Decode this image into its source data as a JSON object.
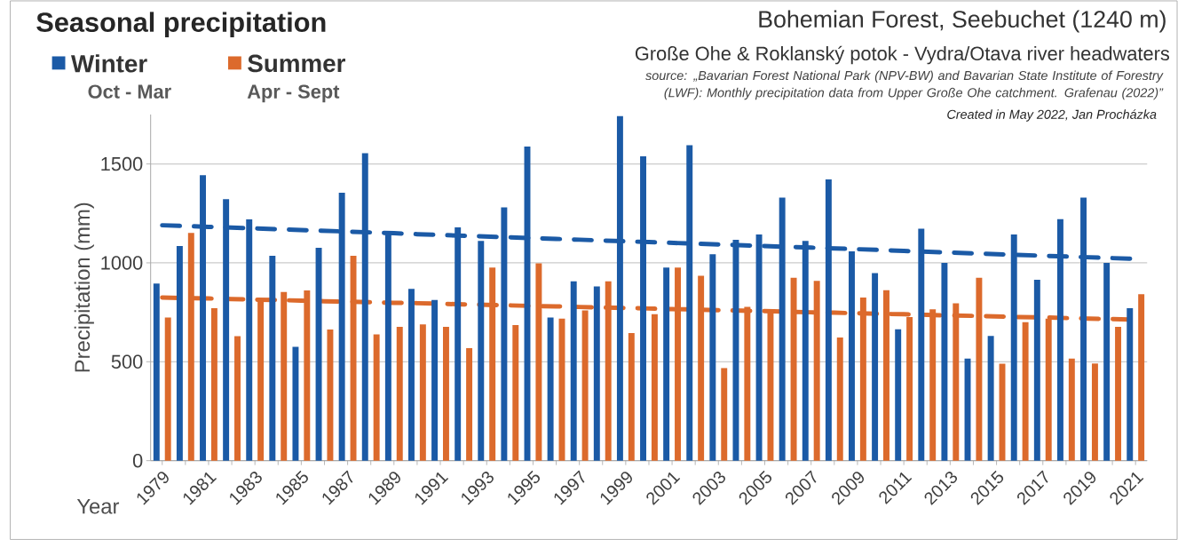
{
  "chart_data": {
    "type": "bar",
    "title": "Seasonal precipitation",
    "subtitle": "Bohemian Forest, Seebuchet (1240 m)",
    "xlabel": "Year",
    "ylabel": "Precipitation (mm)",
    "annotations": [
      "Große Ohe & Roklanský potok - Vydra/Otava river headwaters",
      "source: „Bavarian Forest National Park (NPV-BW) and Bavarian State Institute of Forestry (LWF): Monthly precipitation data from Upper Große Ohe catchment. Grafenau (2022)”",
      "Created in May 2022, Jan Procházka",
      "Oct - Mar",
      "Apr - Sept"
    ],
    "categories": [
      "1979",
      null,
      "1981",
      null,
      "1983",
      null,
      "1985",
      null,
      "1987",
      null,
      "1989",
      null,
      "1991",
      null,
      "1993",
      null,
      "1995",
      null,
      "1997",
      null,
      "1999",
      null,
      "2001",
      null,
      "2003",
      null,
      "2005",
      null,
      "2007",
      null,
      "2009",
      null,
      "2011",
      null,
      "2013",
      null,
      "2015",
      null,
      "2017",
      null,
      "2019",
      null,
      "2021"
    ],
    "series": [
      {
        "name": "Winter",
        "color": "#1b5aa6",
        "values": [
          895,
          1085,
          1443,
          1322,
          1220,
          1036,
          575,
          1076,
          1355,
          1554,
          1143,
          868,
          812,
          1179,
          1111,
          1280,
          1588,
          724,
          907,
          881,
          1742,
          1539,
          976,
          1595,
          1044,
          1117,
          1143,
          1330,
          1111,
          1422,
          1058,
          948,
          664,
          1173,
          1000,
          516,
          630,
          1143,
          915,
          1221,
          1330,
          1000,
          771
        ]
      },
      {
        "name": "Summer",
        "color": "#dc6a2c",
        "values": [
          724,
          1151,
          771,
          629,
          806,
          853,
          861,
          663,
          1036,
          638,
          677,
          689,
          677,
          569,
          976,
          685,
          997,
          718,
          759,
          907,
          645,
          740,
          976,
          935,
          468,
          777,
          762,
          924,
          909,
          623,
          825,
          862,
          726,
          765,
          795,
          924,
          490,
          700,
          718,
          516,
          491,
          677,
          841
        ]
      },
      {
        "type": "line",
        "color": "#1b5aa6",
        "line_style": "dashed",
        "values": [
          1190,
          1186,
          1182,
          1178,
          1174,
          1170,
          1166,
          1162,
          1158,
          1154,
          1150,
          1145,
          1141,
          1137,
          1133,
          1129,
          1125,
          1121,
          1117,
          1113,
          1109,
          1105,
          1101,
          1097,
          1093,
          1089,
          1085,
          1081,
          1077,
          1073,
          1069,
          1065,
          1060,
          1056,
          1052,
          1048,
          1044,
          1040,
          1036,
          1032,
          1028,
          1024,
          1020
        ]
      },
      {
        "type": "line",
        "color": "#dc6a2c",
        "line_style": "dashed",
        "values": [
          825,
          822,
          820,
          817,
          814,
          812,
          809,
          806,
          804,
          801,
          798,
          796,
          793,
          790,
          788,
          785,
          782,
          780,
          777,
          774,
          772,
          769,
          766,
          764,
          761,
          758,
          756,
          753,
          750,
          748,
          745,
          742,
          740,
          737,
          734,
          732,
          729,
          726,
          724,
          721,
          718,
          716,
          713
        ]
      }
    ],
    "ylim": [
      0,
      1750
    ],
    "yticks": [
      0,
      500,
      1000,
      1500
    ],
    "grid": "y",
    "legend": "top left"
  }
}
